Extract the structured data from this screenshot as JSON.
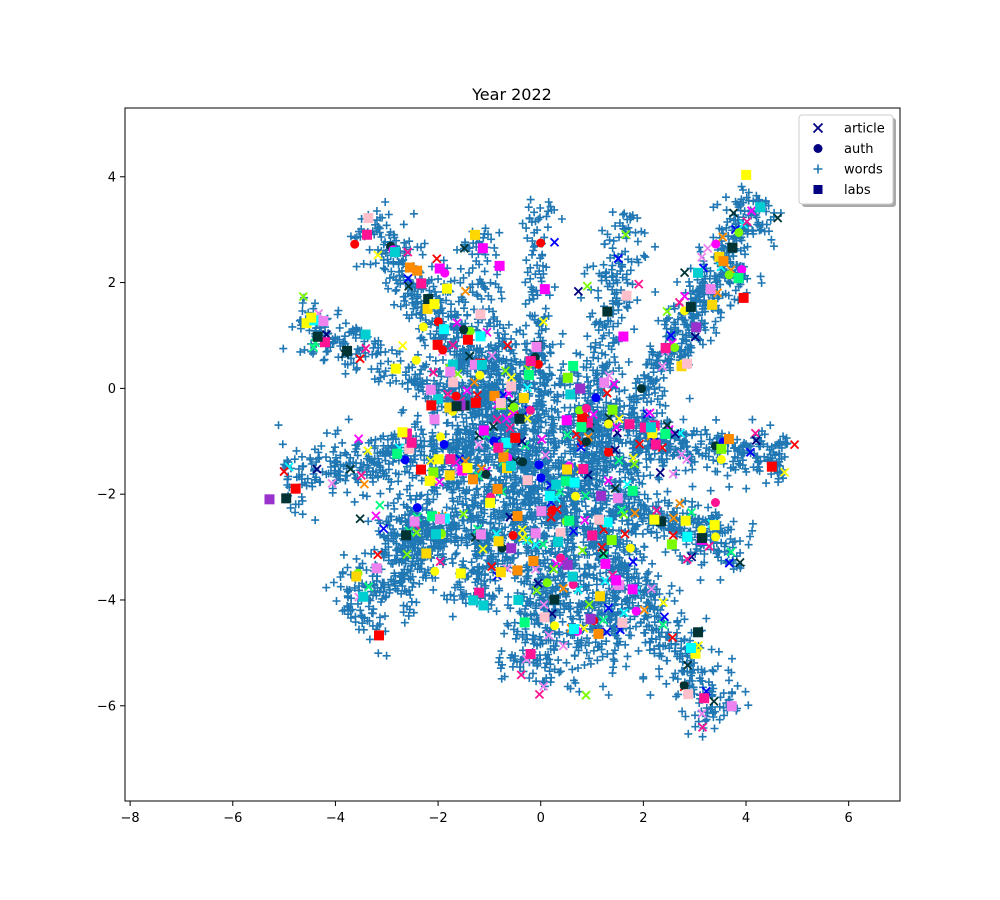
{
  "chart_data": {
    "type": "scatter",
    "title": "Year 2022",
    "xlabel": "",
    "ylabel": "",
    "xlim": [
      -8.1,
      7.0
    ],
    "ylim": [
      -7.8,
      5.3
    ],
    "xticks": [
      -8,
      -6,
      -4,
      -2,
      0,
      2,
      4,
      6
    ],
    "yticks": [
      4,
      2,
      0,
      -2,
      -4,
      -6
    ],
    "grid": false,
    "legend_position": "top-right",
    "legend": [
      {
        "label": "article",
        "marker": "x",
        "color": "#000080"
      },
      {
        "label": "auth",
        "marker": "circle",
        "color": "#000080"
      },
      {
        "label": "words",
        "marker": "plus",
        "color": "#1f77b4"
      },
      {
        "label": "labs",
        "marker": "square",
        "color": "#000080"
      }
    ],
    "series": [
      {
        "name": "words",
        "marker": "plus",
        "color": "#1f77b4",
        "clusters": [
          {
            "cx": 0.3,
            "cy": -2.0,
            "sx": 1.3,
            "sy": 1.2,
            "n": 1100
          },
          {
            "cx": -1.2,
            "cy": -1.2,
            "sx": 0.9,
            "sy": 0.8,
            "n": 350
          },
          {
            "cx": 1.5,
            "cy": -0.8,
            "sx": 0.9,
            "sy": 0.7,
            "n": 300
          },
          {
            "cx": -0.5,
            "cy": 0.3,
            "sx": 0.8,
            "sy": 0.6,
            "n": 250
          },
          {
            "cx": 1.2,
            "cy": -4.2,
            "sx": 0.6,
            "sy": 0.7,
            "n": 250
          },
          {
            "cx": -2.5,
            "cy": -2.8,
            "sx": 0.5,
            "sy": 0.6,
            "n": 200
          }
        ],
        "arms": [
          {
            "x0": -0.8,
            "y0": -0.5,
            "x1": -3.4,
            "y1": 3.3,
            "width": 0.22,
            "n": 260
          },
          {
            "x0": -0.6,
            "y0": -0.6,
            "x1": -4.8,
            "y1": 1.3,
            "width": 0.22,
            "n": 240
          },
          {
            "x0": -1.2,
            "y0": -1.0,
            "x1": -5.0,
            "y1": -1.7,
            "width": 0.25,
            "n": 280
          },
          {
            "x0": -1.2,
            "y0": -2.2,
            "x1": -3.8,
            "y1": -4.3,
            "width": 0.3,
            "n": 260
          },
          {
            "x0": -0.2,
            "y0": -2.0,
            "x1": -1.3,
            "y1": 3.0,
            "width": 0.18,
            "n": 140
          },
          {
            "x0": -0.5,
            "y0": -1.0,
            "x1": -2.4,
            "y1": 2.0,
            "width": 0.25,
            "n": 170
          },
          {
            "x0": 0.0,
            "y0": -1.0,
            "x1": -0.1,
            "y1": 3.6,
            "width": 0.12,
            "n": 110
          },
          {
            "x0": 1.0,
            "y0": -0.5,
            "x1": 1.7,
            "y1": 3.3,
            "width": 0.22,
            "n": 180
          },
          {
            "x0": 1.8,
            "y0": -0.3,
            "x1": 4.3,
            "y1": 3.6,
            "width": 0.2,
            "n": 320
          },
          {
            "x0": 1.8,
            "y0": -1.0,
            "x1": 4.8,
            "y1": -1.3,
            "width": 0.2,
            "n": 220
          },
          {
            "x0": 1.5,
            "y0": -2.2,
            "x1": 4.0,
            "y1": -3.1,
            "width": 0.22,
            "n": 220
          },
          {
            "x0": 1.0,
            "y0": -2.5,
            "x1": 3.6,
            "y1": -6.3,
            "width": 0.25,
            "n": 320
          },
          {
            "x0": 0.2,
            "y0": -3.0,
            "x1": -0.2,
            "y1": -5.6,
            "width": 0.3,
            "n": 220
          },
          {
            "x0": -1.0,
            "y0": -2.5,
            "x1": -1.4,
            "y1": -4.1,
            "width": 0.25,
            "n": 150
          },
          {
            "x0": 2.5,
            "y0": 0.3,
            "x1": 3.9,
            "y1": 2.4,
            "width": 0.2,
            "n": 120
          }
        ]
      },
      {
        "name": "article",
        "marker": "x",
        "palette": [
          "#ff00ff",
          "#ee82ee",
          "#ff1493",
          "#ff0000",
          "#ffff00",
          "#00ff7f",
          "#00ffff",
          "#0000ff",
          "#000080",
          "#003333",
          "#7cfc00",
          "#ff8c00"
        ],
        "n": 260
      },
      {
        "name": "auth",
        "marker": "circle",
        "palette": [
          "#7cfc00",
          "#ff1493",
          "#ff0000",
          "#003333",
          "#0000ff",
          "#ffff00",
          "#ff00ff"
        ],
        "n": 70
      },
      {
        "name": "labs",
        "marker": "square",
        "palette": [
          "#ffff00",
          "#00ffff",
          "#ff00ff",
          "#ee82ee",
          "#00ff7f",
          "#ff8c00",
          "#ff1493",
          "#7cfc00",
          "#ffc0cb",
          "#9932cc",
          "#00ced1",
          "#003333",
          "#ff0000",
          "#ffd700"
        ],
        "n": 190
      }
    ]
  }
}
